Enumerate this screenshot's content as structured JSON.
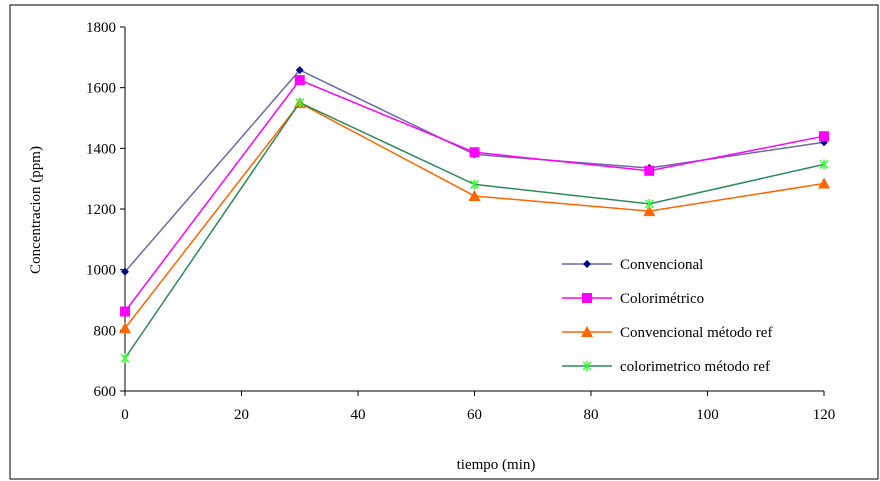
{
  "chart_data": {
    "type": "line",
    "title": "",
    "xlabel": "tiempo (min)",
    "ylabel": "Concentracion (ppm)",
    "xlim": [
      0,
      120
    ],
    "ylim": [
      600,
      1800
    ],
    "x_ticks": [
      "0",
      "20",
      "40",
      "60",
      "80",
      "100",
      "120"
    ],
    "y_ticks": [
      "600",
      "800",
      "1000",
      "1200",
      "1400",
      "1600",
      "1800"
    ],
    "x": [
      0,
      30,
      60,
      90,
      120
    ],
    "grid": false,
    "legend_position": "right",
    "series": [
      {
        "name": "Convencional",
        "values": [
          993,
          1658,
          1380,
          1335,
          1420
        ],
        "color": "#6B6BA6",
        "marker": "diamond",
        "marker_color": "#000080"
      },
      {
        "name": "Colorimétrico",
        "values": [
          862,
          1625,
          1387,
          1326,
          1440
        ],
        "color": "#FF00FF",
        "marker": "square",
        "marker_color": "#FF00FF"
      },
      {
        "name": "Convencional método ref",
        "values": [
          807,
          1549,
          1243,
          1193,
          1284
        ],
        "color": "#FF6600",
        "marker": "triangle",
        "marker_color": "#FF6600"
      },
      {
        "name": "colorimetrico método ref",
        "values": [
          708,
          1551,
          1281,
          1217,
          1347
        ],
        "color": "#2E8B57",
        "marker": "x",
        "marker_color": "#33FF33"
      }
    ]
  }
}
